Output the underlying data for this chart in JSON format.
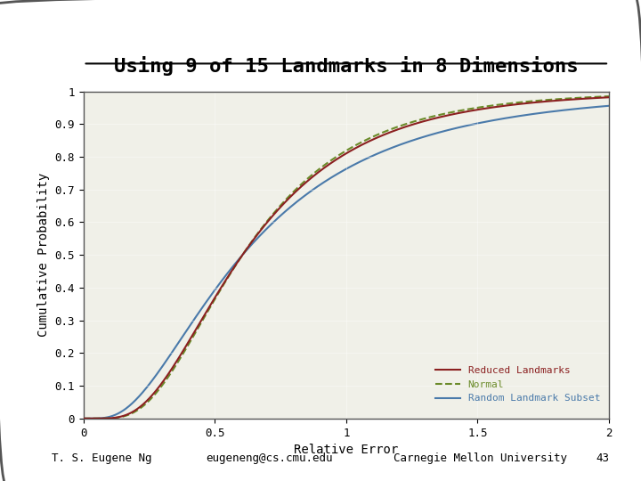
{
  "title": "Using 9 of 15 Landmarks in 8 Dimensions",
  "xlabel": "Relative Error",
  "ylabel": "Cumulative Probability",
  "xlim": [
    0,
    2
  ],
  "ylim": [
    0,
    1
  ],
  "xticks": [
    0,
    0.5,
    1,
    1.5,
    2
  ],
  "yticks": [
    0,
    0.1,
    0.2,
    0.3,
    0.4,
    0.5,
    0.6,
    0.7,
    0.8,
    0.9,
    1
  ],
  "bg_color": "#f0f0e8",
  "border_color": "#888888",
  "line_colors": {
    "reduced": "#8B2020",
    "normal": "#6B8B2A",
    "random": "#4A7AAA"
  },
  "legend_labels": [
    "Reduced Landmarks",
    "Normal",
    "Random Landmark Subset"
  ],
  "legend_colors": [
    "#8B2020",
    "#6B8B2A",
    "#4A7AAA"
  ],
  "footer_left": "T. S. Eugene Ng",
  "footer_mid": "eugeneng@cs.cmu.edu",
  "footer_right": "Carnegie Mellon University",
  "footer_num": "43",
  "font_family": "monospace"
}
